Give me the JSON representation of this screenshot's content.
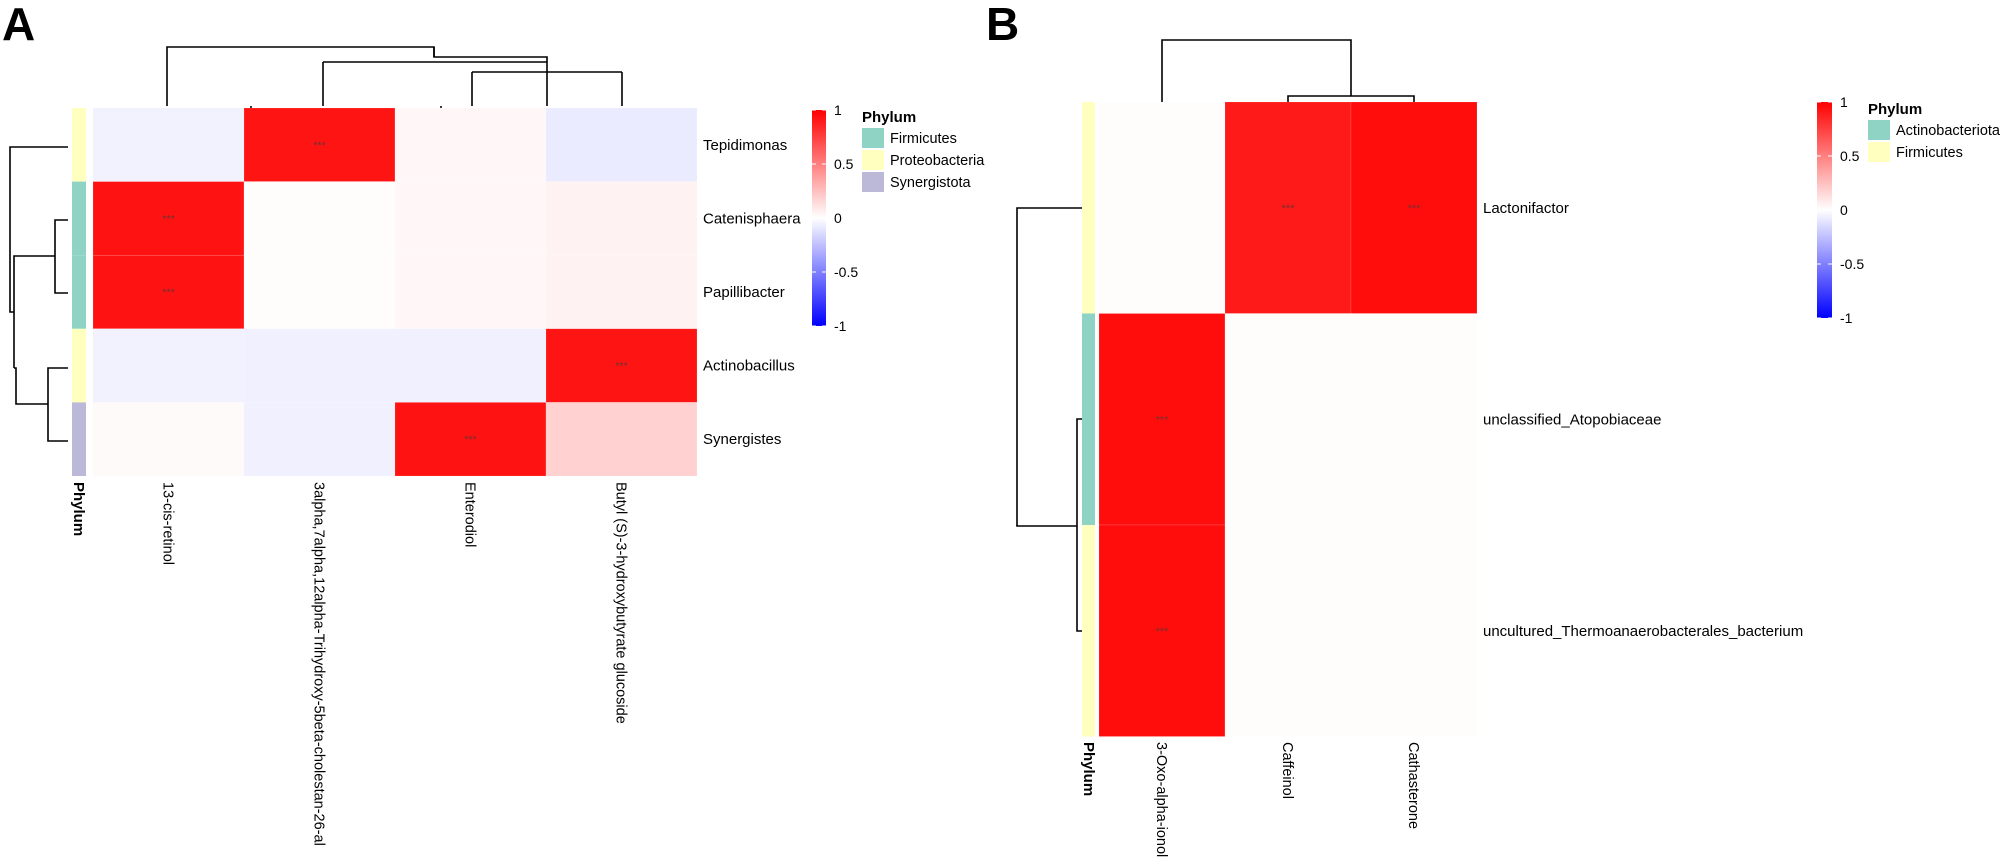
{
  "chart_data": [
    {
      "panel_label": "A",
      "type": "heatmap",
      "rows": [
        "Tepidimonas",
        "Catenisphaera",
        "Papillibacter",
        "Actinobacillus",
        "Synergistes"
      ],
      "columns": [
        "13-cis-retinol",
        "3alpha,7alpha,12alpha-Trihydroxy-5beta-cholestan-26-al",
        "Enterodiol",
        "Butyl (S)-3-hydroxybutyrate glucoside"
      ],
      "values": [
        [
          -0.05,
          0.92,
          0.03,
          -0.08
        ],
        [
          0.93,
          0.01,
          0.03,
          0.05
        ],
        [
          0.93,
          0.01,
          0.03,
          0.05
        ],
        [
          -0.05,
          -0.06,
          -0.06,
          0.92
        ],
        [
          0.02,
          -0.06,
          0.93,
          0.18
        ]
      ],
      "annotations": [
        [
          "",
          "***",
          "",
          ""
        ],
        [
          "***",
          "",
          "",
          ""
        ],
        [
          "***",
          "",
          "",
          ""
        ],
        [
          "",
          "",
          "",
          "***"
        ],
        [
          "",
          "",
          "***",
          ""
        ]
      ],
      "row_annotation_title": "Phylum",
      "row_phylum": [
        "Proteobacteria",
        "Firmicutes",
        "Firmicutes",
        "Proteobacteria",
        "Synergistota"
      ],
      "legend": {
        "title": "Phylum",
        "entries": [
          {
            "name": "Firmicutes",
            "color": "#8fd3c5"
          },
          {
            "name": "Proteobacteria",
            "color": "#ffffbf"
          },
          {
            "name": "Synergistota",
            "color": "#bcb8d8"
          }
        ]
      },
      "colorbar": {
        "ticks": [
          "1",
          "0.5",
          "0",
          "-0.5",
          "-1"
        ],
        "range": [
          -1,
          1
        ],
        "colors": {
          "low": "#0000ff",
          "mid": "#ffffff",
          "high": "#ff0000"
        }
      }
    },
    {
      "panel_label": "B",
      "type": "heatmap",
      "rows": [
        "Lactonifactor",
        "unclassified_Atopobiaceae",
        "uncultured_Thermoanaerobacterales_bacterium"
      ],
      "columns": [
        "3-Oxo-alpha-ionol",
        "Caffeinol",
        "Cathasterone"
      ],
      "values": [
        [
          0.01,
          0.9,
          0.95
        ],
        [
          0.95,
          0.01,
          0.01
        ],
        [
          0.95,
          0.01,
          0.01
        ]
      ],
      "annotations": [
        [
          "",
          "***",
          "***"
        ],
        [
          "***",
          "",
          ""
        ],
        [
          "***",
          "",
          ""
        ]
      ],
      "row_annotation_title": "Phylum",
      "row_phylum": [
        "Firmicutes",
        "Actinobacteriota",
        "Firmicutes"
      ],
      "legend": {
        "title": "Phylum",
        "entries": [
          {
            "name": "Actinobacteriota",
            "color": "#8fd3c5"
          },
          {
            "name": "Firmicutes",
            "color": "#ffffbf"
          }
        ]
      },
      "colorbar": {
        "ticks": [
          "1",
          "0.5",
          "0",
          "-0.5",
          "-1"
        ],
        "range": [
          -1,
          1
        ],
        "colors": {
          "low": "#0000ff",
          "mid": "#ffffff",
          "high": "#ff0000"
        }
      }
    }
  ]
}
